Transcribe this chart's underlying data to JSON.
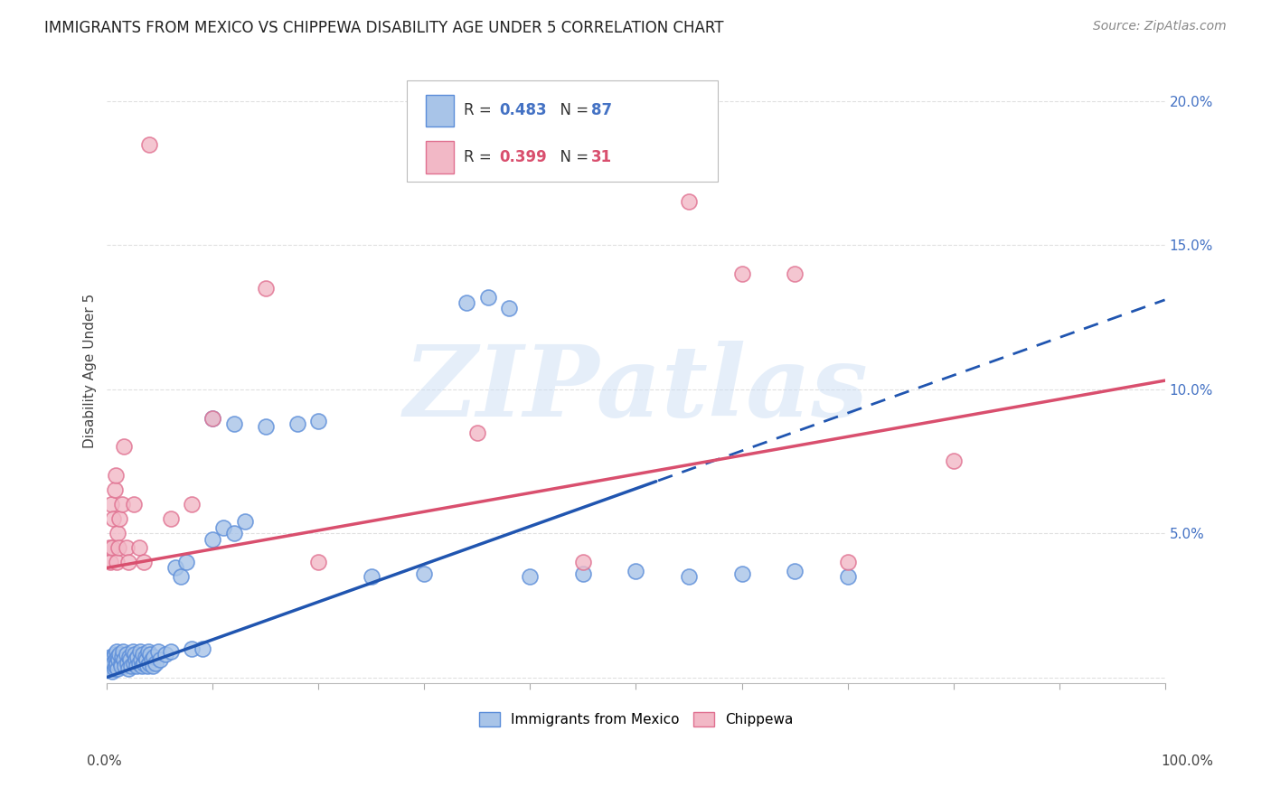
{
  "title": "IMMIGRANTS FROM MEXICO VS CHIPPEWA DISABILITY AGE UNDER 5 CORRELATION CHART",
  "source": "Source: ZipAtlas.com",
  "ylabel": "Disability Age Under 5",
  "watermark_text": "ZIPatlas",
  "blue_color_face": "#a8c4e8",
  "blue_color_edge": "#5b8dd9",
  "pink_color_face": "#f2b8c6",
  "pink_color_edge": "#e07090",
  "blue_line_color": "#2055b0",
  "pink_line_color": "#d94f6e",
  "ytick_color": "#4472c4",
  "grid_color": "#e0e0e0",
  "bg_color": "#ffffff",
  "title_fontsize": 12,
  "source_fontsize": 10,
  "axis_label_fontsize": 11,
  "tick_fontsize": 11,
  "legend_R_blue": "0.483",
  "legend_N_blue": "87",
  "legend_R_pink": "0.399",
  "legend_N_pink": "31",
  "blue_line_solid_end": 0.52,
  "blue_line_slope": 0.131,
  "blue_line_intercept": 0.0,
  "pink_line_slope": 0.065,
  "pink_line_intercept": 0.038,
  "xlim": [
    0.0,
    1.0
  ],
  "ylim": [
    -0.002,
    0.215
  ],
  "blue_x": [
    0.001,
    0.002,
    0.002,
    0.003,
    0.003,
    0.003,
    0.004,
    0.004,
    0.005,
    0.005,
    0.005,
    0.006,
    0.006,
    0.007,
    0.007,
    0.008,
    0.008,
    0.009,
    0.009,
    0.01,
    0.01,
    0.011,
    0.012,
    0.013,
    0.013,
    0.014,
    0.015,
    0.016,
    0.017,
    0.018,
    0.019,
    0.02,
    0.021,
    0.022,
    0.023,
    0.024,
    0.025,
    0.026,
    0.027,
    0.028,
    0.029,
    0.03,
    0.031,
    0.032,
    0.033,
    0.034,
    0.035,
    0.036,
    0.037,
    0.038,
    0.039,
    0.04,
    0.041,
    0.042,
    0.043,
    0.044,
    0.046,
    0.048,
    0.05,
    0.055,
    0.06,
    0.065,
    0.07,
    0.075,
    0.08,
    0.09,
    0.1,
    0.12,
    0.15,
    0.18,
    0.2,
    0.25,
    0.3,
    0.34,
    0.36,
    0.38,
    0.4,
    0.45,
    0.5,
    0.55,
    0.6,
    0.65,
    0.7,
    0.1,
    0.11,
    0.12,
    0.13
  ],
  "blue_y": [
    0.004,
    0.003,
    0.006,
    0.004,
    0.005,
    0.007,
    0.005,
    0.003,
    0.006,
    0.004,
    0.002,
    0.007,
    0.005,
    0.008,
    0.003,
    0.006,
    0.004,
    0.009,
    0.005,
    0.007,
    0.003,
    0.006,
    0.008,
    0.005,
    0.004,
    0.007,
    0.009,
    0.006,
    0.004,
    0.008,
    0.005,
    0.003,
    0.007,
    0.006,
    0.004,
    0.009,
    0.005,
    0.008,
    0.006,
    0.004,
    0.007,
    0.005,
    0.009,
    0.006,
    0.004,
    0.008,
    0.005,
    0.007,
    0.006,
    0.004,
    0.009,
    0.005,
    0.008,
    0.006,
    0.004,
    0.007,
    0.005,
    0.009,
    0.006,
    0.008,
    0.009,
    0.038,
    0.035,
    0.04,
    0.01,
    0.01,
    0.09,
    0.088,
    0.087,
    0.088,
    0.089,
    0.035,
    0.036,
    0.13,
    0.132,
    0.128,
    0.035,
    0.036,
    0.037,
    0.035,
    0.036,
    0.037,
    0.035,
    0.048,
    0.052,
    0.05,
    0.054
  ],
  "pink_x": [
    0.002,
    0.003,
    0.004,
    0.005,
    0.006,
    0.007,
    0.008,
    0.009,
    0.01,
    0.011,
    0.012,
    0.014,
    0.016,
    0.018,
    0.02,
    0.025,
    0.03,
    0.035,
    0.04,
    0.06,
    0.08,
    0.1,
    0.15,
    0.2,
    0.35,
    0.45,
    0.55,
    0.6,
    0.65,
    0.7,
    0.8
  ],
  "pink_y": [
    0.045,
    0.04,
    0.06,
    0.045,
    0.055,
    0.065,
    0.07,
    0.04,
    0.05,
    0.045,
    0.055,
    0.06,
    0.08,
    0.045,
    0.04,
    0.06,
    0.045,
    0.04,
    0.185,
    0.055,
    0.06,
    0.09,
    0.135,
    0.04,
    0.085,
    0.04,
    0.165,
    0.14,
    0.14,
    0.04,
    0.075
  ]
}
